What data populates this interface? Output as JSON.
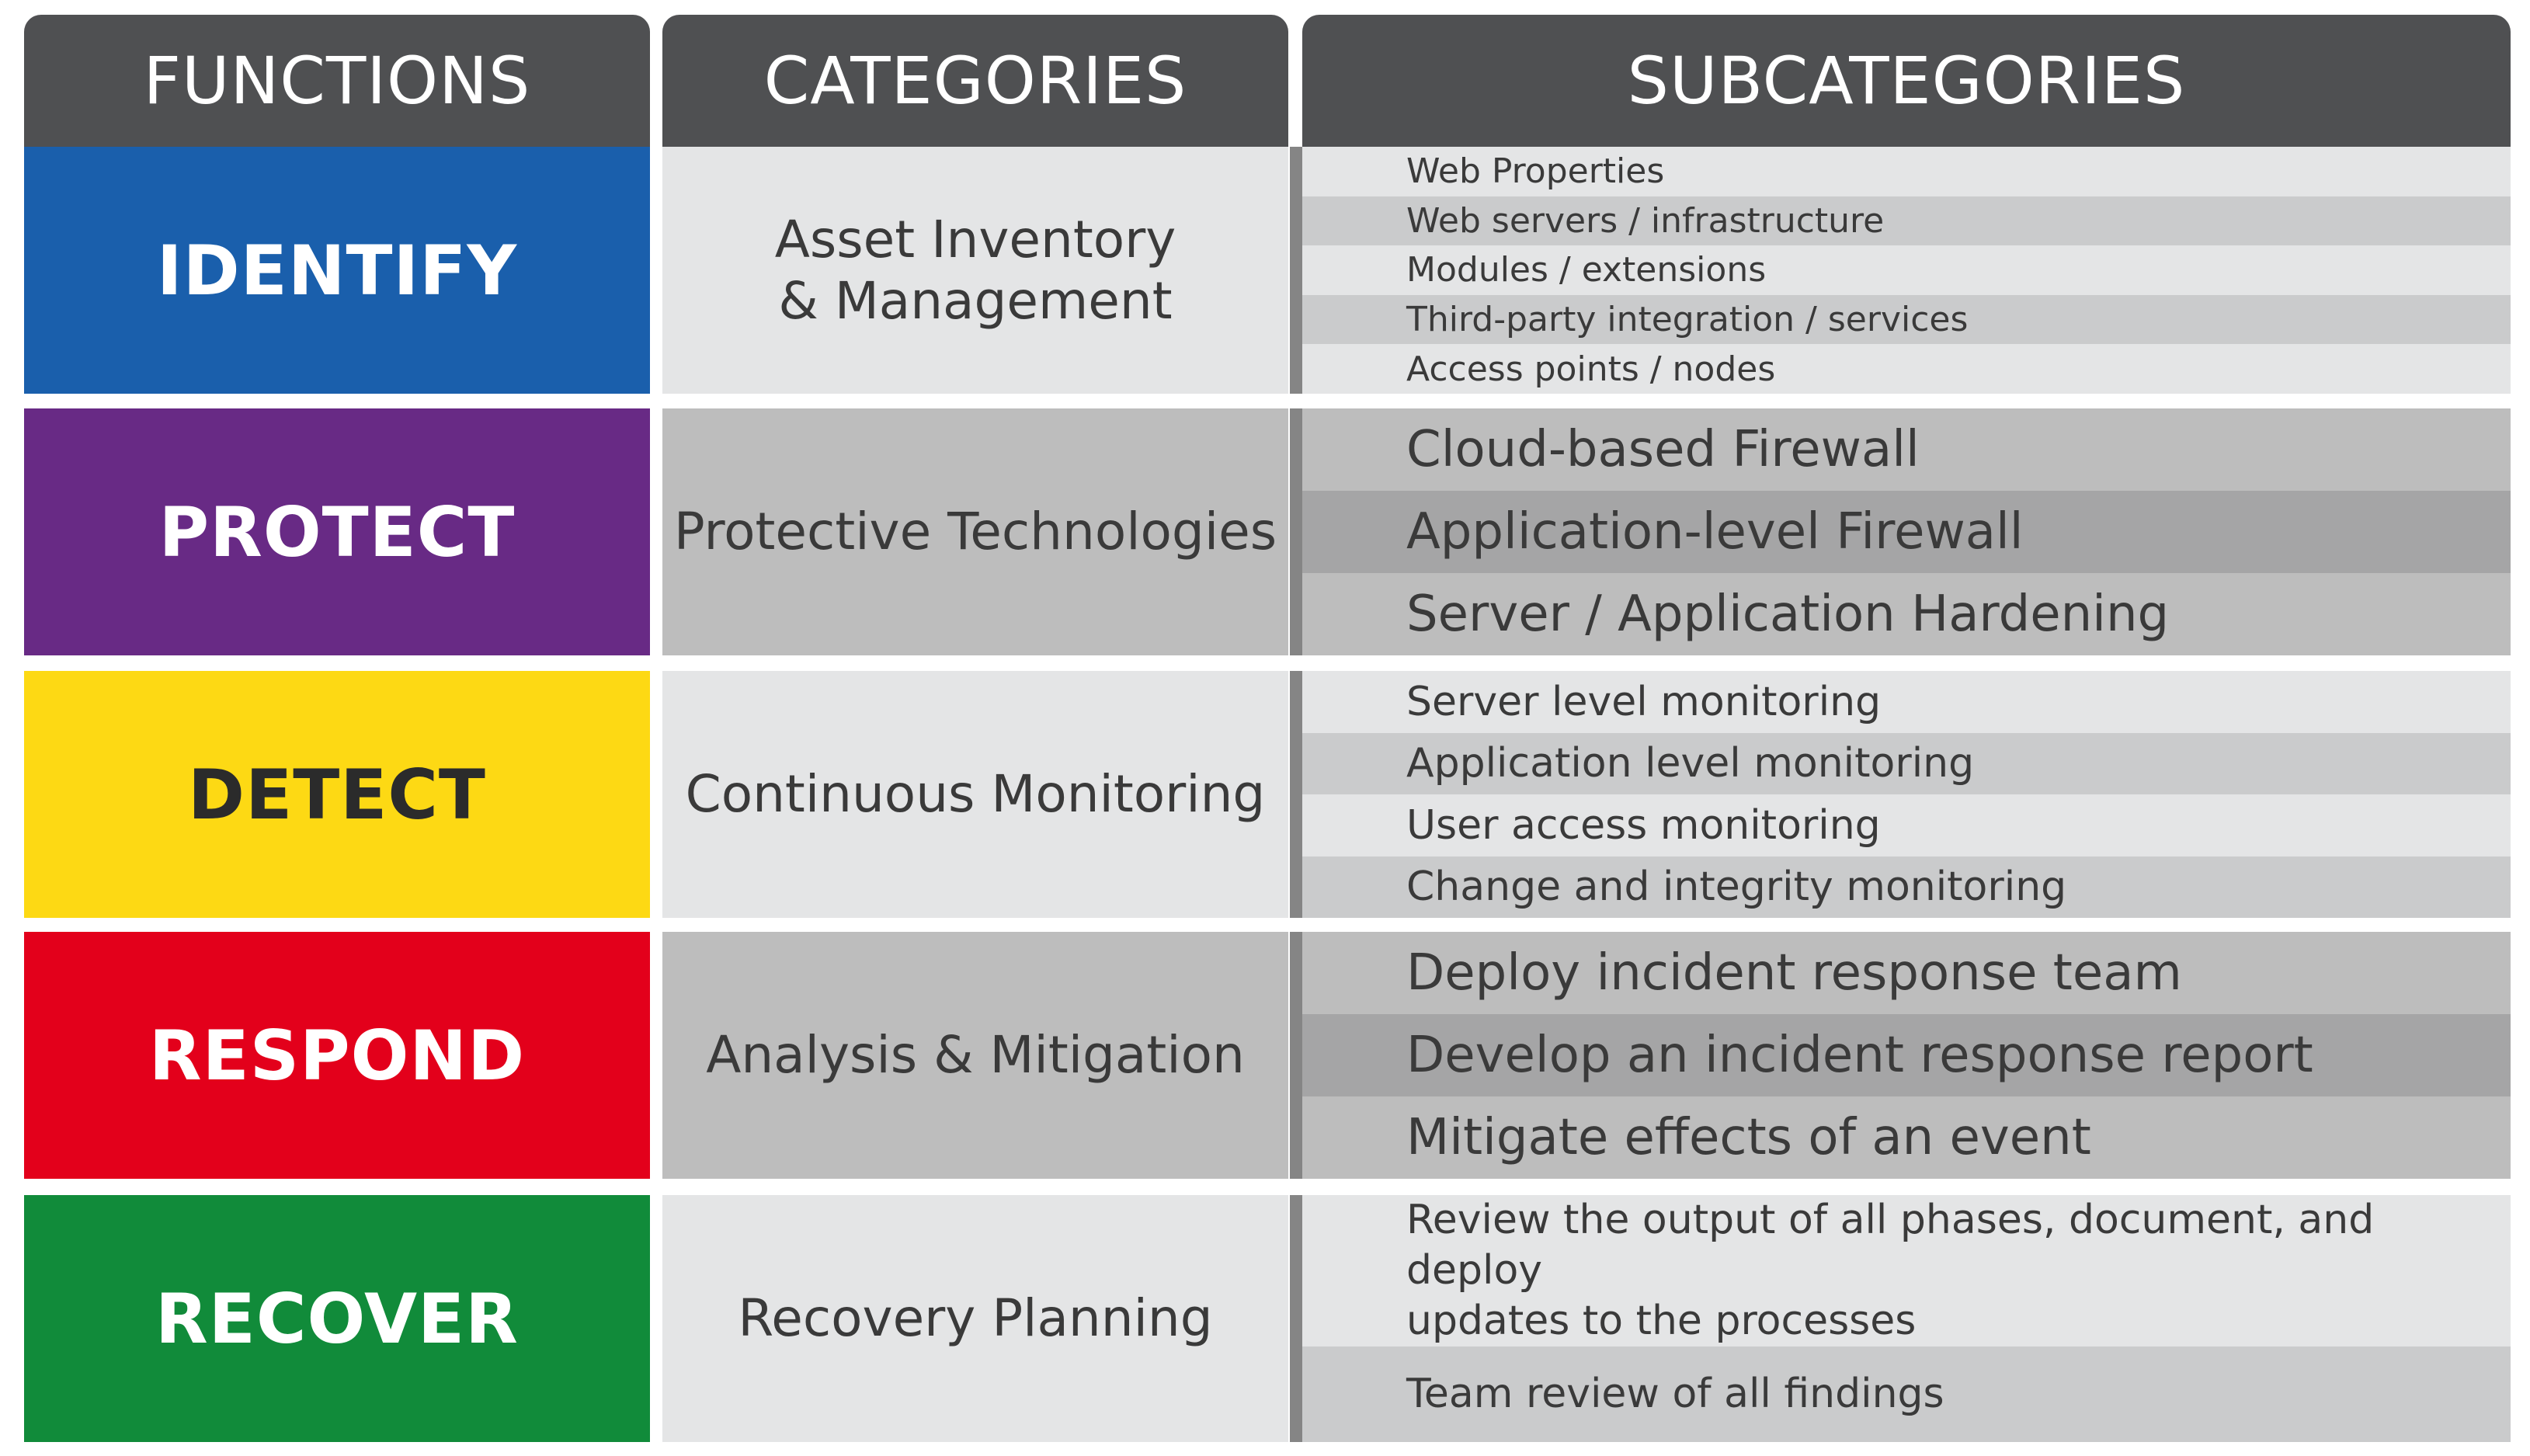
{
  "headers": {
    "functions": "FUNCTIONS",
    "categories": "CATEGORIES",
    "subcategories": "SUBCATEGORIES"
  },
  "colors": {
    "header": "#4f5052",
    "identify": "#1a5fac",
    "protect": "#682a85",
    "detect": "#fdd914",
    "respond": "#e3001b",
    "recover": "#118b3a"
  },
  "rows": [
    {
      "function": "IDENTIFY",
      "category": "Asset Inventory\n& Management",
      "subcategories": [
        "Web Properties",
        "Web servers / infrastructure",
        "Modules / extensions",
        "Third-party integration / services",
        "Access points / nodes"
      ]
    },
    {
      "function": "PROTECT",
      "category": "Protective Technologies",
      "subcategories": [
        "Cloud-based Firewall",
        "Application-level Firewall",
        "Server / Application Hardening"
      ]
    },
    {
      "function": "DETECT",
      "category": "Continuous Monitoring",
      "subcategories": [
        "Server level monitoring",
        "Application level monitoring",
        "User access monitoring",
        "Change and integrity monitoring"
      ]
    },
    {
      "function": "RESPOND",
      "category": "Analysis & Mitigation",
      "subcategories": [
        "Deploy incident response team",
        "Develop an incident response report",
        "Mitigate effects of an event"
      ]
    },
    {
      "function": "RECOVER",
      "category": "Recovery Planning",
      "subcategories": [
        "Review the output of all phases, document, and deploy\nupdates to the processes",
        "Team review of all findings"
      ]
    }
  ]
}
